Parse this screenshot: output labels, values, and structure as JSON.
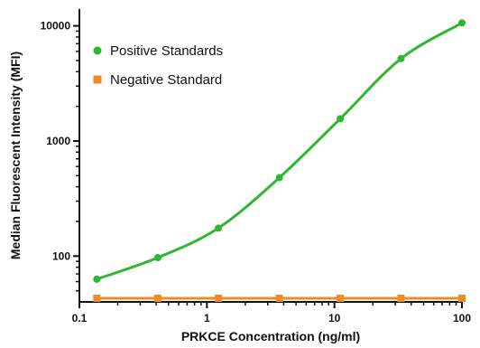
{
  "chart_data": {
    "type": "line",
    "title": "",
    "xlabel": "PRKCE Concentration (ng/ml)",
    "ylabel": "Median Fluorescent Intensity (MFI)",
    "x_scale": "log",
    "y_scale": "log",
    "xlim": [
      0.1,
      100
    ],
    "ylim": [
      40,
      14000
    ],
    "x_ticks": [
      0.1,
      1,
      10,
      100
    ],
    "x_tick_labels": [
      "0.1",
      "1",
      "10",
      "100"
    ],
    "y_ticks": [
      100,
      1000,
      10000
    ],
    "y_tick_labels": [
      "100",
      "1000",
      "10000"
    ],
    "grid": false,
    "legend_position": "top-left",
    "series": [
      {
        "name": "Positive Standards",
        "color": "#2db82d",
        "marker": "circle",
        "fit_curve": true,
        "x": [
          0.137,
          0.412,
          1.23,
          3.7,
          11.1,
          33.3,
          100
        ],
        "y": [
          63,
          97,
          175,
          480,
          1560,
          5200,
          10600
        ]
      },
      {
        "name": "Negative Standard",
        "color": "#f08c28",
        "marker": "square",
        "fit_curve": false,
        "x": [
          0.137,
          0.412,
          1.23,
          3.7,
          11.1,
          33.3,
          100
        ],
        "y": [
          43,
          43,
          43,
          43,
          43,
          43,
          43
        ]
      }
    ]
  }
}
